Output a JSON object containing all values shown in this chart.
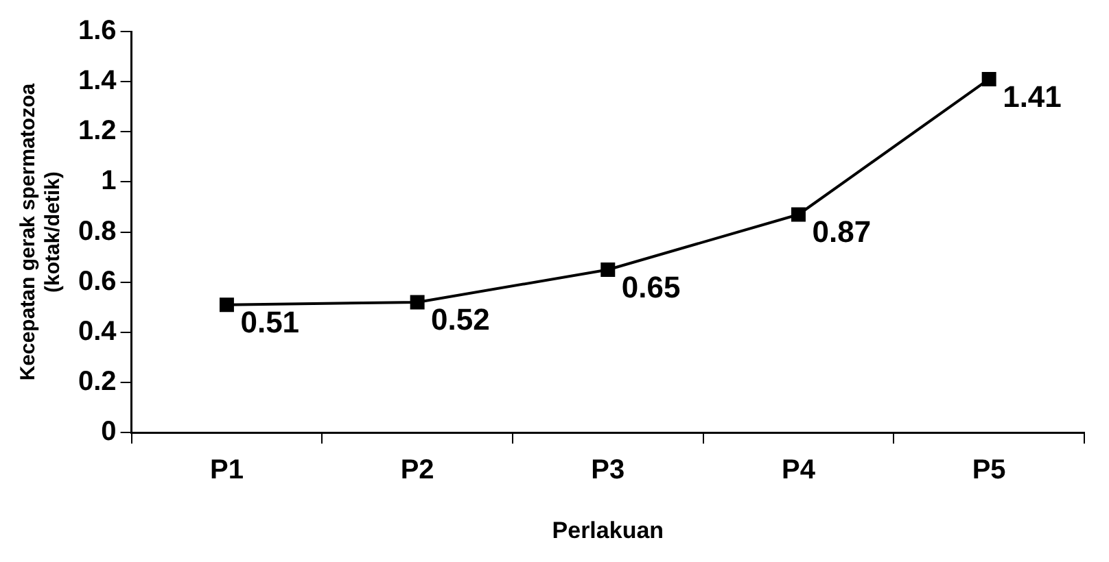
{
  "chart_data": {
    "type": "line",
    "xlabel": "Perlakuan",
    "ylabel": "Kecepatan gerak spermatozoa\n(kotak/detik)",
    "categories": [
      "P1",
      "P2",
      "P3",
      "P4",
      "P5"
    ],
    "series": [
      {
        "color": "#000000",
        "values": [
          0.51,
          0.52,
          0.65,
          0.87,
          1.41
        ]
      }
    ],
    "ylim": [
      0,
      1.6
    ],
    "yticks": [
      0,
      0.2,
      0.4,
      0.6,
      0.8,
      1,
      1.2,
      1.4,
      1.6
    ],
    "grid": false,
    "legend": false,
    "marker": "square",
    "line_style": "solid",
    "data_labels": true
  }
}
